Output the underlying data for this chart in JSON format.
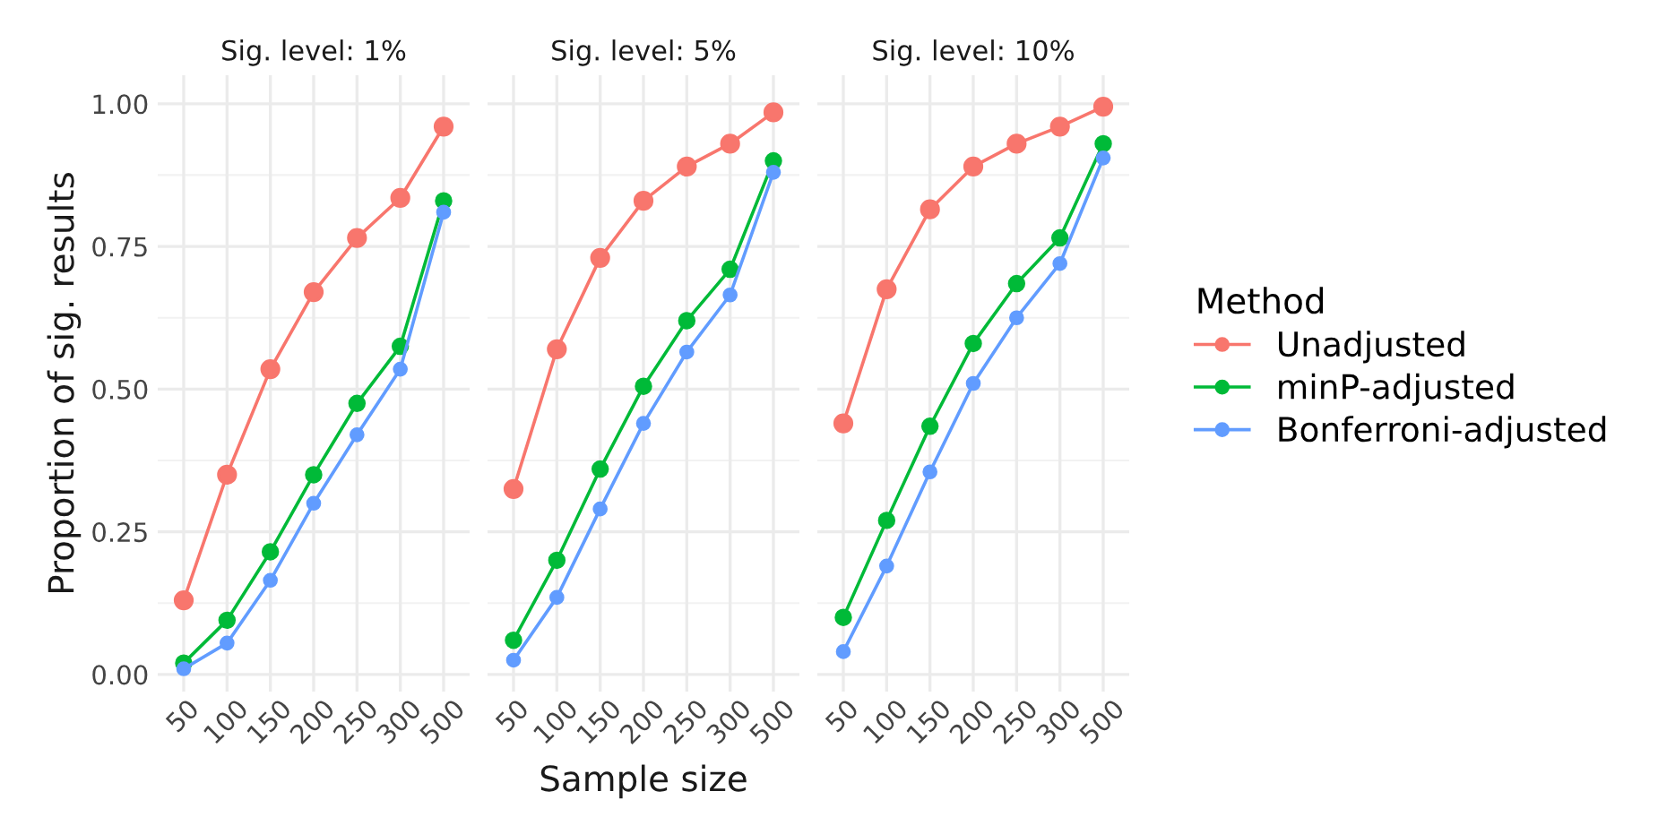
{
  "chart_data": [
    {
      "type": "line",
      "title": "Sig. level: 1%",
      "ylabel": "Proportion of sig. results",
      "legend_title": "Method",
      "categories": [
        "50",
        "100",
        "150",
        "200",
        "250",
        "300",
        "500"
      ],
      "ylim": [
        -0.03,
        1.05
      ],
      "yticks": [
        {
          "value": 0,
          "label": "0.00"
        },
        0.25,
        {
          "value": 0.5,
          "label": "0.50"
        },
        0.75,
        {
          "value": 1,
          "label": "1.00"
        }
      ],
      "grid": true,
      "marker": "circle",
      "line_style": "solid",
      "legend": "right",
      "series": [
        {
          "name": "Unadjusted",
          "color": "#f8766d",
          "values": [
            0.13,
            0.35,
            0.535,
            0.67,
            0.765,
            0.835,
            0.96
          ]
        },
        {
          "name": "minP-adjusted",
          "color": "#00ba38",
          "values": [
            0.02,
            0.095,
            0.215,
            0.35,
            0.475,
            0.575,
            0.83
          ]
        },
        {
          "name": "Bonferroni-adjusted",
          "color": "#619cff",
          "values": [
            0.01,
            0.055,
            0.165,
            0.3,
            0.42,
            0.535,
            0.81
          ]
        }
      ]
    },
    {
      "type": "line",
      "title": "Sig. level: 5%",
      "xlabel": "Sample size",
      "categories": [
        "50",
        "100",
        "150",
        "200",
        "250",
        "300",
        "500"
      ],
      "ylim": [
        -0.03,
        1.05
      ],
      "yticks": [
        0,
        0.25,
        0.5,
        0.75,
        1
      ],
      "tick_labels": "x",
      "grid": true,
      "marker": "circle",
      "line_style": "solid",
      "series": [
        {
          "color": "#f8766d",
          "values": [
            0.325,
            0.57,
            0.73,
            0.83,
            0.89,
            0.93,
            0.985
          ]
        },
        {
          "color": "#00ba38",
          "values": [
            0.06,
            0.2,
            0.36,
            0.505,
            0.62,
            0.71,
            0.9
          ]
        },
        {
          "color": "#619cff",
          "values": [
            0.025,
            0.135,
            0.29,
            0.44,
            0.565,
            0.665,
            0.88
          ]
        }
      ]
    },
    {
      "type": "line",
      "title": "Sig. level: 10%",
      "categories": [
        "50",
        "100",
        "150",
        "200",
        "250",
        "300",
        "500"
      ],
      "ylim": [
        -0.03,
        1.05
      ],
      "yticks": [
        0,
        0.25,
        0.5,
        0.75,
        1
      ],
      "tick_labels": "x",
      "grid": true,
      "marker": "circle",
      "line_style": "solid",
      "series": [
        {
          "color": "#f8766d",
          "values": [
            0.44,
            0.675,
            0.815,
            0.89,
            0.93,
            0.96,
            0.995
          ]
        },
        {
          "color": "#00ba38",
          "values": [
            0.1,
            0.27,
            0.435,
            0.58,
            0.685,
            0.765,
            0.93
          ]
        },
        {
          "color": "#619cff",
          "values": [
            0.04,
            0.19,
            0.355,
            0.51,
            0.625,
            0.72,
            0.905
          ]
        }
      ]
    }
  ]
}
